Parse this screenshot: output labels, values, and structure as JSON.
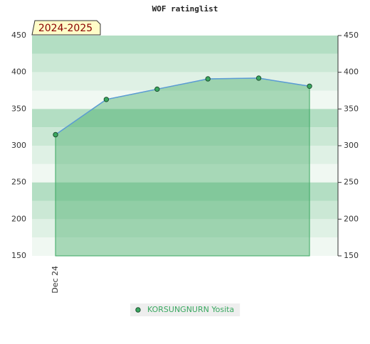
{
  "chart_data": {
    "type": "area",
    "title": "WOF ratinglist",
    "badge": "2024-2025",
    "categories": [
      "Dec 24",
      null,
      null,
      null,
      null,
      null
    ],
    "series": [
      {
        "name": "KORSUNGNURN Yosita",
        "color": "#3aa860",
        "values": [
          315,
          363,
          377,
          391,
          392,
          381
        ]
      }
    ],
    "ylim": [
      150,
      450
    ],
    "yticks": [
      150,
      200,
      250,
      300,
      350,
      400,
      450
    ]
  }
}
